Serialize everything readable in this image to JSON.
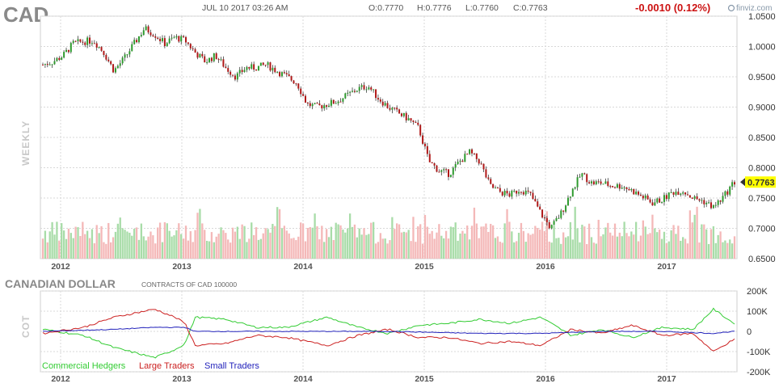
{
  "header": {
    "ticker": "CAD",
    "datetime": "JUL 10 2017 03:26 AM",
    "open": "O:0.7770",
    "high": "H:0.7776",
    "low": "L:0.7760",
    "close": "C:0.7763",
    "change": "-0.0010 (0.12%)",
    "logo": "finviz.com"
  },
  "colors": {
    "up": "#2e9b2e",
    "down": "#b01818",
    "vol_up": "#a8dca8",
    "vol_down": "#f4b8b8",
    "commercial": "#33cc33",
    "large": "#cc2222",
    "small": "#2222bb",
    "last_price_bg": "#ffff00"
  },
  "chart_data": [
    {
      "type": "candlestick",
      "period_label": "WEEKLY",
      "last_price": "0.7763",
      "ylim": [
        0.65,
        1.05
      ],
      "y_ticks": [
        "1.0500",
        "1.0000",
        "0.9500",
        "0.9000",
        "0.8500",
        "0.8000",
        "0.7500",
        "0.7000",
        "0.6500"
      ],
      "x_ticks": [
        "2012",
        "2013",
        "2014",
        "2015",
        "2016",
        "2017"
      ],
      "date_range": [
        "2011-11",
        "2017-07"
      ],
      "close_path": [
        [
          "2011-11",
          0.97
        ],
        [
          "2011-12",
          0.975
        ],
        [
          "2012-01",
          0.985
        ],
        [
          "2012-02",
          1.005
        ],
        [
          "2012-03",
          1.008
        ],
        [
          "2012-04",
          1.01
        ],
        [
          "2012-05",
          0.99
        ],
        [
          "2012-06",
          0.96
        ],
        [
          "2012-07",
          0.98
        ],
        [
          "2012-08",
          1.005
        ],
        [
          "2012-09",
          1.03
        ],
        [
          "2012-10",
          1.02
        ],
        [
          "2012-11",
          1.005
        ],
        [
          "2012-12",
          1.015
        ],
        [
          "2013-01",
          1.01
        ],
        [
          "2013-02",
          0.99
        ],
        [
          "2013-03",
          0.975
        ],
        [
          "2013-04",
          0.985
        ],
        [
          "2013-05",
          0.965
        ],
        [
          "2013-06",
          0.95
        ],
        [
          "2013-07",
          0.965
        ],
        [
          "2013-08",
          0.965
        ],
        [
          "2013-09",
          0.97
        ],
        [
          "2013-10",
          0.96
        ],
        [
          "2013-11",
          0.95
        ],
        [
          "2013-12",
          0.94
        ],
        [
          "2014-01",
          0.905
        ],
        [
          "2014-02",
          0.9
        ],
        [
          "2014-03",
          0.905
        ],
        [
          "2014-04",
          0.91
        ],
        [
          "2014-05",
          0.92
        ],
        [
          "2014-06",
          0.93
        ],
        [
          "2014-07",
          0.935
        ],
        [
          "2014-08",
          0.915
        ],
        [
          "2014-09",
          0.9
        ],
        [
          "2014-10",
          0.89
        ],
        [
          "2014-11",
          0.88
        ],
        [
          "2014-12",
          0.865
        ],
        [
          "2015-01",
          0.81
        ],
        [
          "2015-02",
          0.795
        ],
        [
          "2015-03",
          0.79
        ],
        [
          "2015-04",
          0.81
        ],
        [
          "2015-05",
          0.825
        ],
        [
          "2015-06",
          0.81
        ],
        [
          "2015-07",
          0.77
        ],
        [
          "2015-08",
          0.76
        ],
        [
          "2015-09",
          0.755
        ],
        [
          "2015-10",
          0.765
        ],
        [
          "2015-11",
          0.755
        ],
        [
          "2015-12",
          0.725
        ],
        [
          "2016-01",
          0.7
        ],
        [
          "2016-02",
          0.725
        ],
        [
          "2016-03",
          0.76
        ],
        [
          "2016-04",
          0.79
        ],
        [
          "2016-05",
          0.775
        ],
        [
          "2016-06",
          0.775
        ],
        [
          "2016-07",
          0.77
        ],
        [
          "2016-08",
          0.77
        ],
        [
          "2016-09",
          0.762
        ],
        [
          "2016-10",
          0.752
        ],
        [
          "2016-11",
          0.742
        ],
        [
          "2016-12",
          0.748
        ],
        [
          "2017-01",
          0.76
        ],
        [
          "2017-02",
          0.762
        ],
        [
          "2017-03",
          0.75
        ],
        [
          "2017-04",
          0.745
        ],
        [
          "2017-05",
          0.735
        ],
        [
          "2017-06",
          0.752
        ],
        [
          "2017-07",
          0.776
        ]
      ]
    },
    {
      "type": "line",
      "title": "CANADIAN DOLLAR",
      "subtitle": "CONTRACTS OF CAD 100000",
      "axis_label": "COT",
      "ylim": [
        -200000,
        200000
      ],
      "y_ticks": [
        "200K",
        "100K",
        "0",
        "-100K",
        "-200K"
      ],
      "x_ticks": [
        "2012",
        "2013",
        "2014",
        "2015",
        "2016",
        "2017"
      ],
      "series": [
        {
          "name": "Commercial Hedgers",
          "points": [
            [
              "2011-11",
              10000
            ],
            [
              "2012-03",
              -20000
            ],
            [
              "2012-06",
              -80000
            ],
            [
              "2012-10",
              -130000
            ],
            [
              "2012-12",
              -90000
            ],
            [
              "2013-01",
              -60000
            ],
            [
              "2013-02",
              70000
            ],
            [
              "2013-05",
              60000
            ],
            [
              "2013-08",
              20000
            ],
            [
              "2013-11",
              20000
            ],
            [
              "2014-03",
              70000
            ],
            [
              "2014-06",
              20000
            ],
            [
              "2014-09",
              -10000
            ],
            [
              "2014-12",
              30000
            ],
            [
              "2015-03",
              40000
            ],
            [
              "2015-06",
              60000
            ],
            [
              "2015-09",
              40000
            ],
            [
              "2015-12",
              70000
            ],
            [
              "2016-03",
              -20000
            ],
            [
              "2016-06",
              10000
            ],
            [
              "2016-09",
              -30000
            ],
            [
              "2016-12",
              20000
            ],
            [
              "2017-03",
              10000
            ],
            [
              "2017-05",
              110000
            ],
            [
              "2017-07",
              40000
            ]
          ]
        },
        {
          "name": "Large Traders",
          "points": [
            [
              "2011-11",
              -10000
            ],
            [
              "2012-03",
              20000
            ],
            [
              "2012-06",
              70000
            ],
            [
              "2012-10",
              110000
            ],
            [
              "2012-12",
              70000
            ],
            [
              "2013-01",
              40000
            ],
            [
              "2013-02",
              -70000
            ],
            [
              "2013-05",
              -60000
            ],
            [
              "2013-08",
              -20000
            ],
            [
              "2013-11",
              -30000
            ],
            [
              "2014-03",
              -70000
            ],
            [
              "2014-06",
              -20000
            ],
            [
              "2014-09",
              10000
            ],
            [
              "2014-12",
              -30000
            ],
            [
              "2015-03",
              -30000
            ],
            [
              "2015-06",
              -60000
            ],
            [
              "2015-09",
              -50000
            ],
            [
              "2015-12",
              -70000
            ],
            [
              "2016-03",
              10000
            ],
            [
              "2016-06",
              -10000
            ],
            [
              "2016-09",
              30000
            ],
            [
              "2016-12",
              -20000
            ],
            [
              "2017-03",
              -10000
            ],
            [
              "2017-05",
              -100000
            ],
            [
              "2017-07",
              -40000
            ]
          ]
        },
        {
          "name": "Small Traders",
          "points": [
            [
              "2011-11",
              0
            ],
            [
              "2012-06",
              10000
            ],
            [
              "2012-10",
              20000
            ],
            [
              "2013-01",
              20000
            ],
            [
              "2013-02",
              0
            ],
            [
              "2013-08",
              0
            ],
            [
              "2014-03",
              0
            ],
            [
              "2014-09",
              0
            ],
            [
              "2015-06",
              -10000
            ],
            [
              "2015-12",
              -10000
            ],
            [
              "2016-06",
              0
            ],
            [
              "2016-12",
              0
            ],
            [
              "2017-05",
              -10000
            ],
            [
              "2017-07",
              0
            ]
          ]
        }
      ]
    }
  ]
}
